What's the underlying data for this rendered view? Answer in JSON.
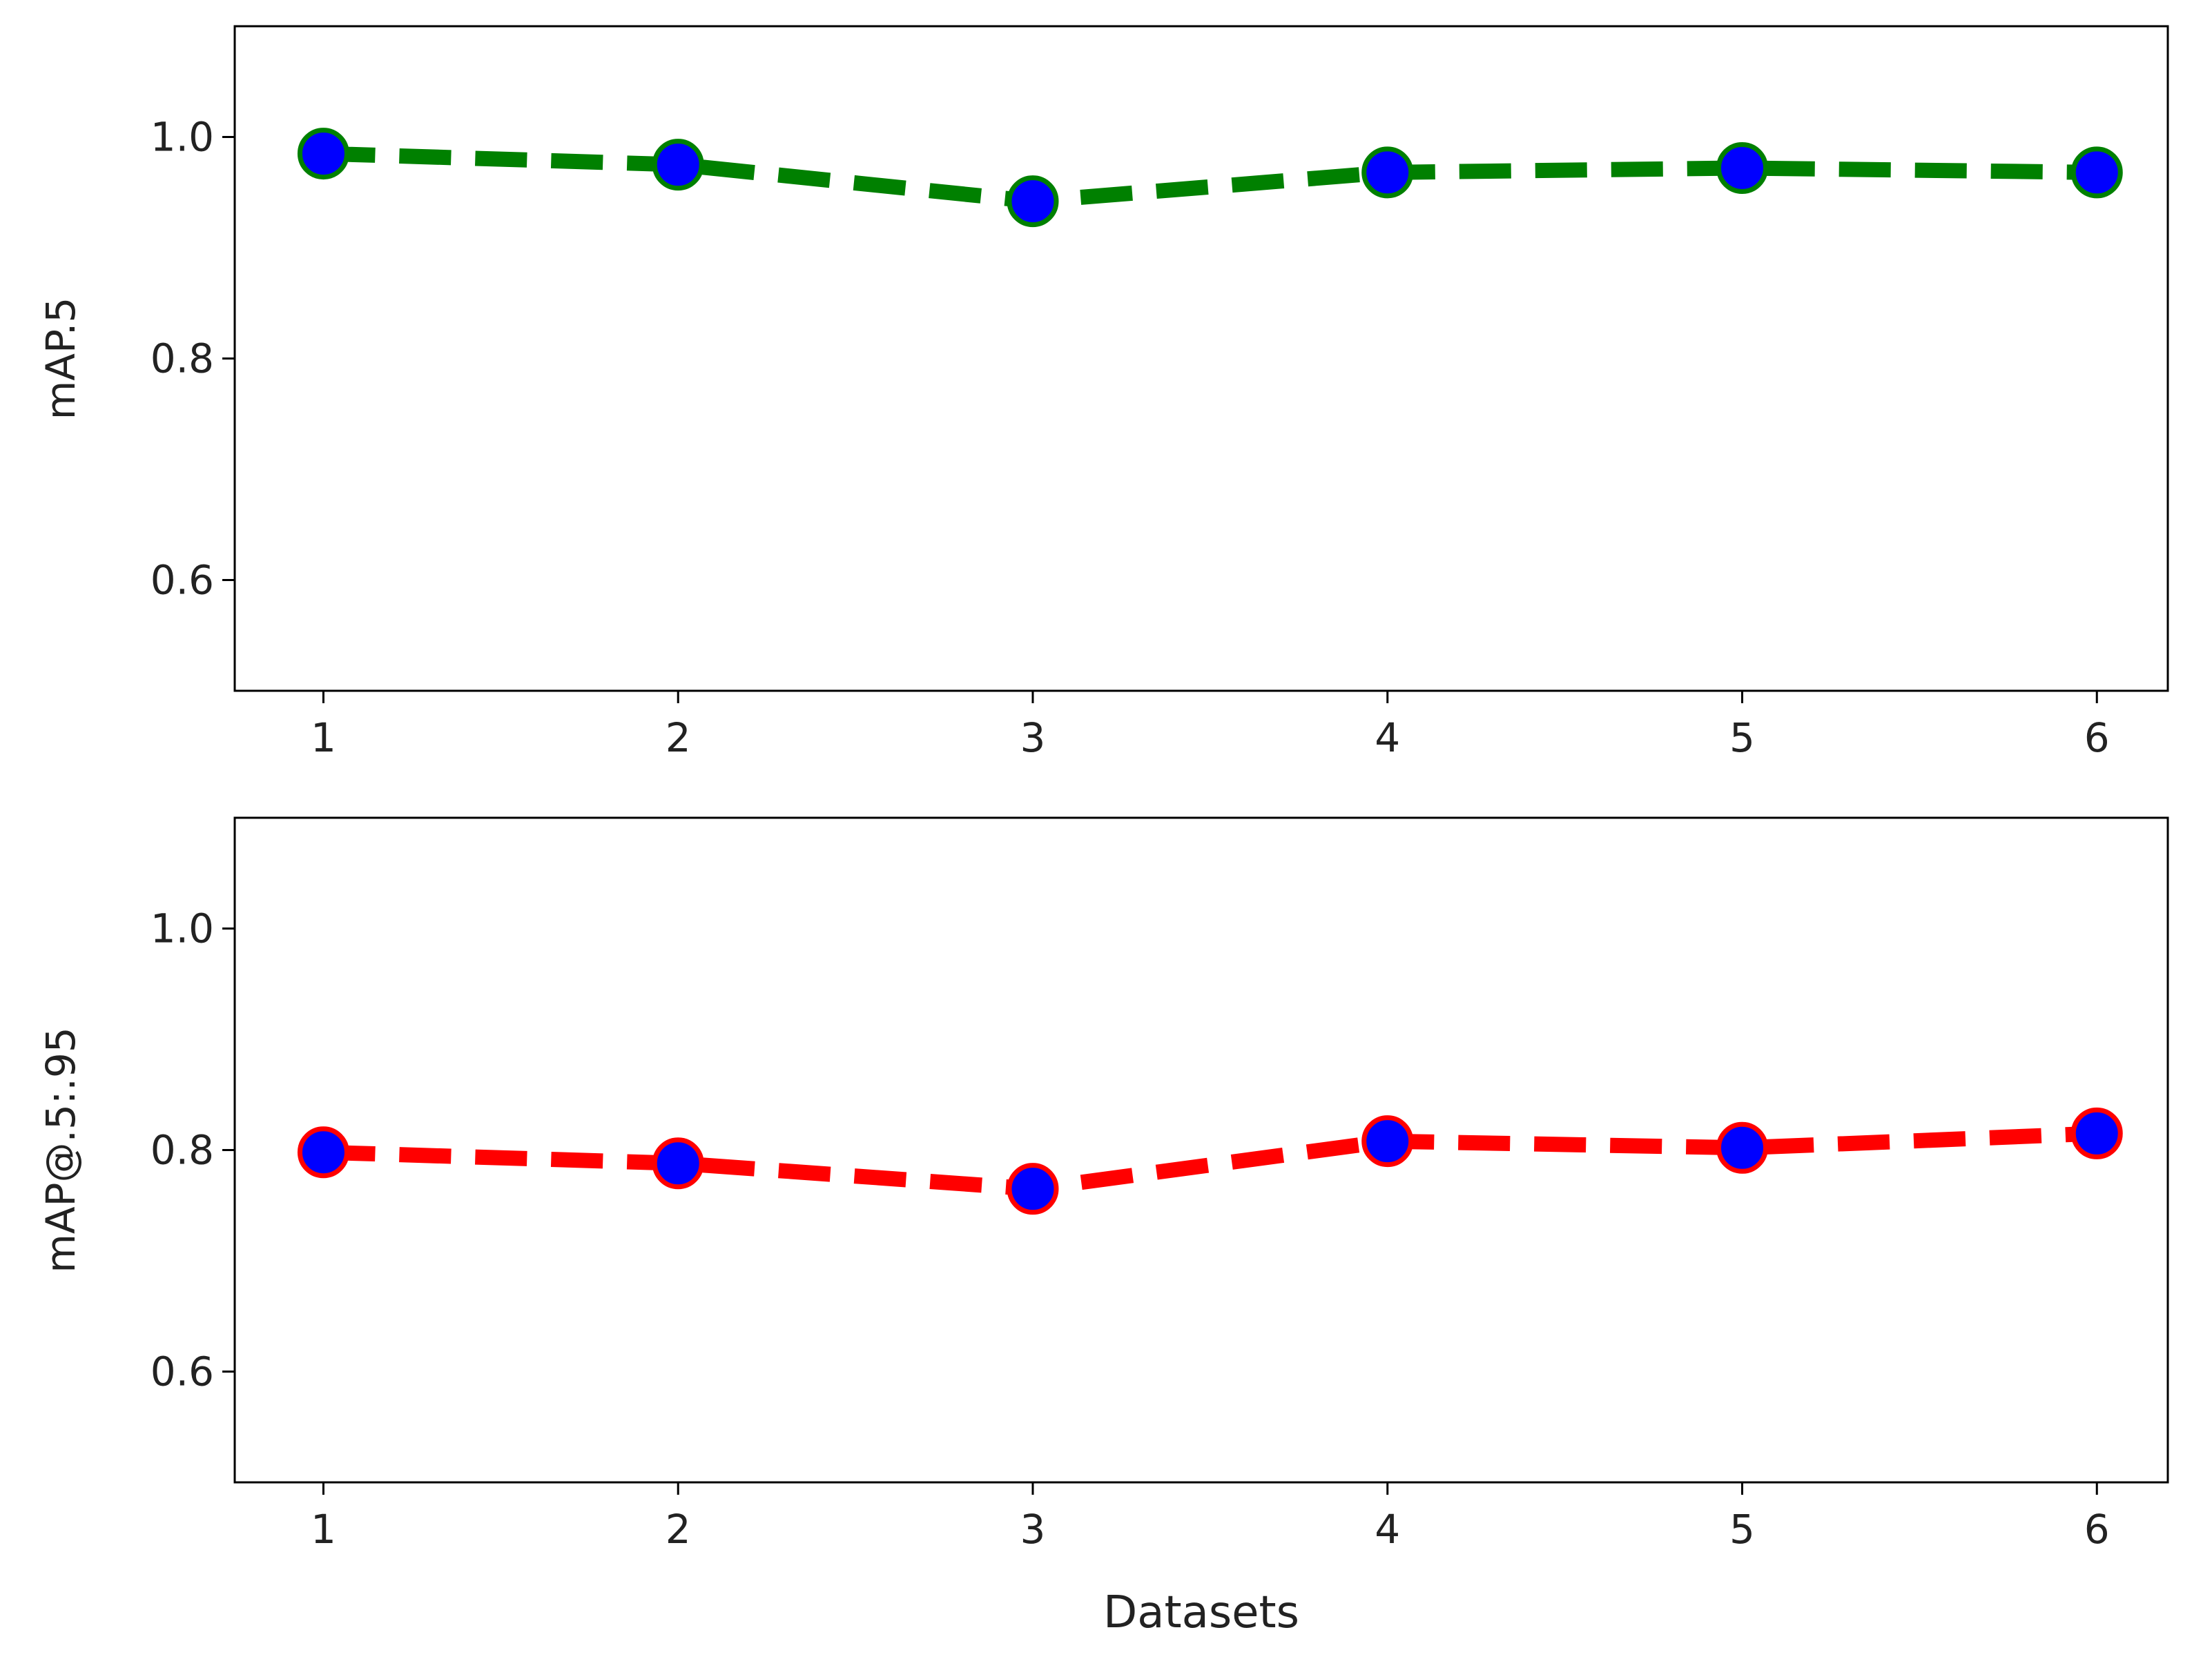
{
  "chart_data": [
    {
      "type": "line",
      "x": [
        1,
        2,
        3,
        4,
        5,
        6
      ],
      "values": [
        0.985,
        0.975,
        0.942,
        0.968,
        0.972,
        0.968
      ],
      "xlabel": "",
      "ylabel": "mAP.5",
      "ylim": [
        0.5,
        1.1
      ],
      "xlim": [
        0.75,
        6.2
      ],
      "xticks": [
        "1",
        "2",
        "3",
        "4",
        "5",
        "6"
      ],
      "yticks": [
        "0.6",
        "0.8",
        "1.0"
      ],
      "line_color": "#008000",
      "marker_color": "#0000ff",
      "marker_edge_color": "#008000",
      "line_style": "dashed",
      "grid": false
    },
    {
      "type": "line",
      "x": [
        1,
        2,
        3,
        4,
        5,
        6
      ],
      "values": [
        0.798,
        0.788,
        0.765,
        0.808,
        0.802,
        0.815
      ],
      "xlabel": "Datasets",
      "ylabel": "mAP@.5:.95",
      "ylim": [
        0.5,
        1.1
      ],
      "xlim": [
        0.75,
        6.2
      ],
      "xticks": [
        "1",
        "2",
        "3",
        "4",
        "5",
        "6"
      ],
      "yticks": [
        "0.6",
        "0.8",
        "1.0"
      ],
      "line_color": "#ff0000",
      "marker_color": "#0000ff",
      "marker_edge_color": "#ff0000",
      "line_style": "dashed",
      "grid": false
    }
  ]
}
